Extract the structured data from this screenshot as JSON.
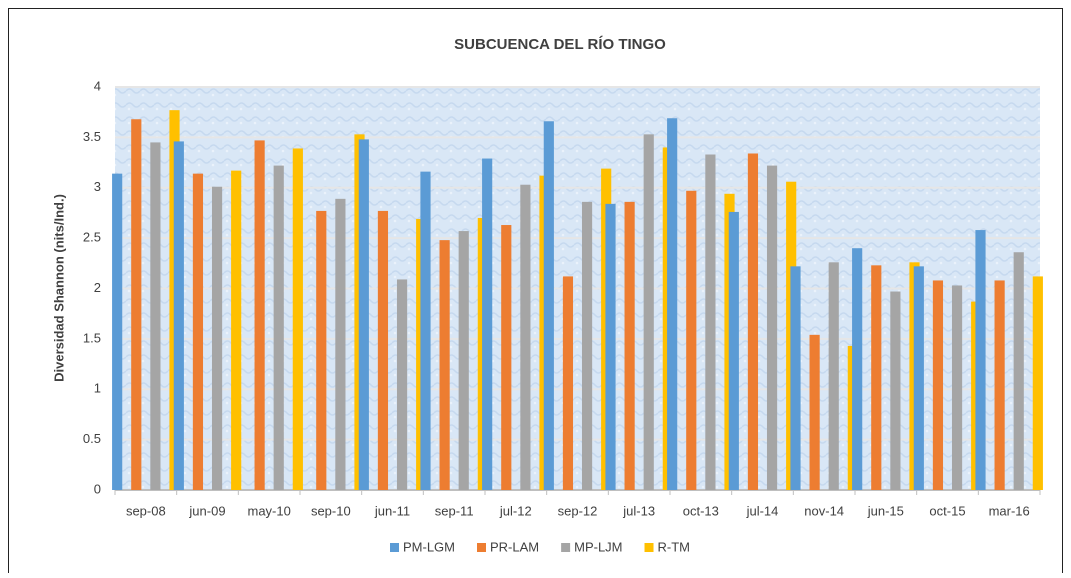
{
  "chart_data": {
    "type": "bar",
    "title": "SUBCUENCA DEL RÍO TINGO",
    "ylabel": "Diversidad Shannon (nits/Ind.)",
    "categories": [
      "sep-08",
      "jun-09",
      "may-10",
      "sep-10",
      "jun-11",
      "sep-11",
      "jul-12",
      "sep-12",
      "jul-13",
      "oct-13",
      "jul-14",
      "nov-14",
      "jun-15",
      "oct-15",
      "mar-16"
    ],
    "series": [
      {
        "name": "PM-LGM",
        "color": "#5b9bd5",
        "values": [
          3.14,
          3.46,
          null,
          null,
          3.48,
          3.16,
          3.29,
          3.66,
          2.84,
          3.69,
          2.76,
          2.22,
          2.4,
          2.22,
          2.58
        ]
      },
      {
        "name": "PR-LAM",
        "color": "#ed7d31",
        "values": [
          3.68,
          3.14,
          3.47,
          2.77,
          2.77,
          2.48,
          2.63,
          2.12,
          2.86,
          2.97,
          3.34,
          1.54,
          2.23,
          2.08,
          2.08
        ]
      },
      {
        "name": "MP-LJM",
        "color": "#a5a5a5",
        "values": [
          3.45,
          3.01,
          3.22,
          2.89,
          2.09,
          2.57,
          3.03,
          2.86,
          3.53,
          3.33,
          3.22,
          2.26,
          1.97,
          2.03,
          2.36
        ]
      },
      {
        "name": "R-TM",
        "color": "#ffc000",
        "values": [
          3.77,
          3.17,
          3.39,
          3.53,
          2.69,
          2.7,
          3.12,
          3.19,
          3.4,
          2.94,
          3.06,
          1.43,
          2.26,
          1.87,
          2.12
        ]
      }
    ],
    "ylim": [
      0,
      4
    ],
    "yticks": [
      0,
      0.5,
      1,
      1.5,
      2,
      2.5,
      3,
      3.5,
      4
    ],
    "grid": true,
    "legend": "bottom"
  }
}
